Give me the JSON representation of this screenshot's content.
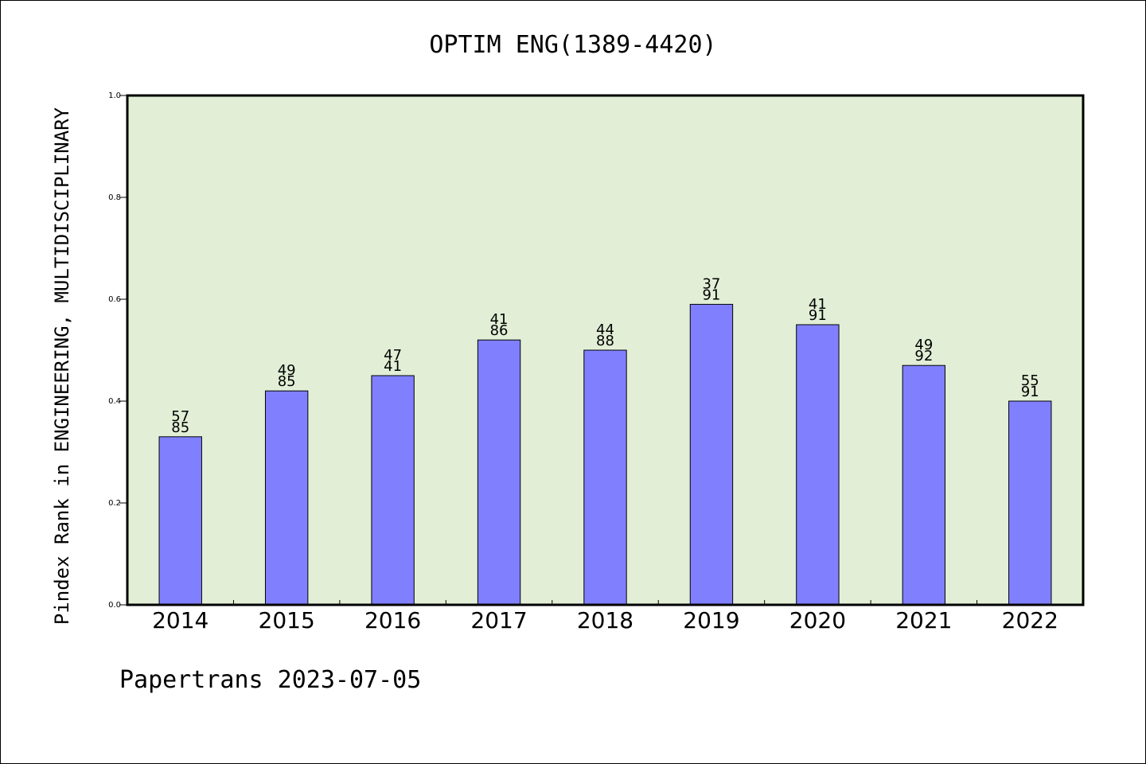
{
  "chart_data": {
    "type": "bar",
    "title": "OPTIM ENG(1389-4420)",
    "ylabel": "Pindex Rank in ENGINEERING, MULTIDISCIPLINARY",
    "xlabel": "",
    "ylim": [
      0.0,
      1.0
    ],
    "yticks": [
      "0.0",
      "0.2",
      "0.4",
      "0.6",
      "0.8",
      "1.0"
    ],
    "categories": [
      "2014",
      "2015",
      "2016",
      "2017",
      "2018",
      "2019",
      "2020",
      "2021",
      "2022"
    ],
    "values": [
      0.33,
      0.42,
      0.45,
      0.52,
      0.5,
      0.59,
      0.55,
      0.47,
      0.4
    ],
    "labels_top": [
      "57",
      "49",
      "47",
      "41",
      "44",
      "37",
      "41",
      "49",
      "55"
    ],
    "labels_bottom": [
      "85",
      "85",
      "41",
      "86",
      "88",
      "91",
      "91",
      "92",
      "91"
    ],
    "grid": false,
    "colors": {
      "plot_bg": "#e2efd6",
      "bar": "#8080ff",
      "bar_edge": "#000000"
    }
  },
  "footer": {
    "text": "Papertrans 2023-07-05"
  }
}
